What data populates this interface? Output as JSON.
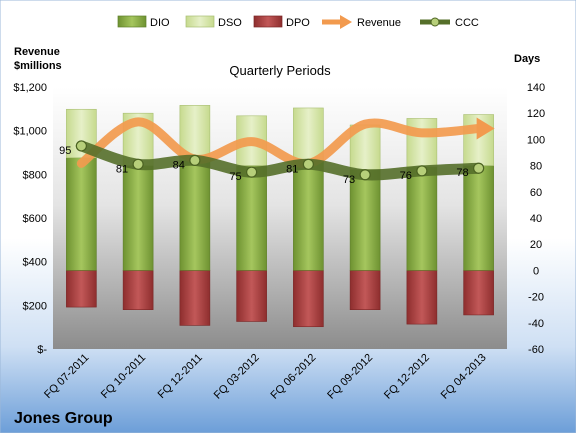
{
  "company": "Jones Group",
  "chart_data": {
    "type": "bar",
    "title": "Quarterly Periods",
    "left_axis_title": [
      "Revenue",
      "$millions"
    ],
    "right_axis_title": "Days",
    "categories": [
      "FQ 07-2011",
      "FQ 10-2011",
      "FQ 12-2011",
      "FQ 03-2012",
      "FQ 06-2012",
      "FQ 09-2012",
      "FQ 12-2012",
      "FQ 04-2013"
    ],
    "left_ticks": [
      "$-",
      "$200",
      "$400",
      "$600",
      "$800",
      "$1,000",
      "$1,200"
    ],
    "right_ticks": [
      "-60",
      "-40",
      "-20",
      "0",
      "20",
      "40",
      "60",
      "80",
      "100",
      "120",
      "140"
    ],
    "left_ylim": [
      0,
      1200
    ],
    "right_ylim": [
      -60,
      140
    ],
    "series": [
      {
        "name": "DIO",
        "values": [
          86,
          80,
          84,
          80,
          84,
          77,
          79,
          80
        ],
        "color": "#8FB14B"
      },
      {
        "name": "DSO",
        "values": [
          37,
          40,
          42,
          38,
          40,
          34,
          37,
          39
        ],
        "color": "#D6E6A7"
      },
      {
        "name": "DPO",
        "values": [
          -28,
          -30,
          -42,
          -39,
          -43,
          -30,
          -41,
          -34
        ],
        "color": "#B84B4B"
      },
      {
        "name": "Revenue",
        "values": [
          850,
          1040,
          870,
          950,
          850,
          1030,
          990,
          1010
        ],
        "color": "#F29A4E"
      },
      {
        "name": "CCC",
        "values": [
          95,
          81,
          84,
          75,
          81,
          73,
          76,
          78
        ],
        "color": "#5A7A2C"
      }
    ],
    "ccc_labels": [
      "95",
      "81",
      "84",
      "75",
      "81",
      "73",
      "76",
      "78"
    ],
    "legend_position": "top"
  }
}
